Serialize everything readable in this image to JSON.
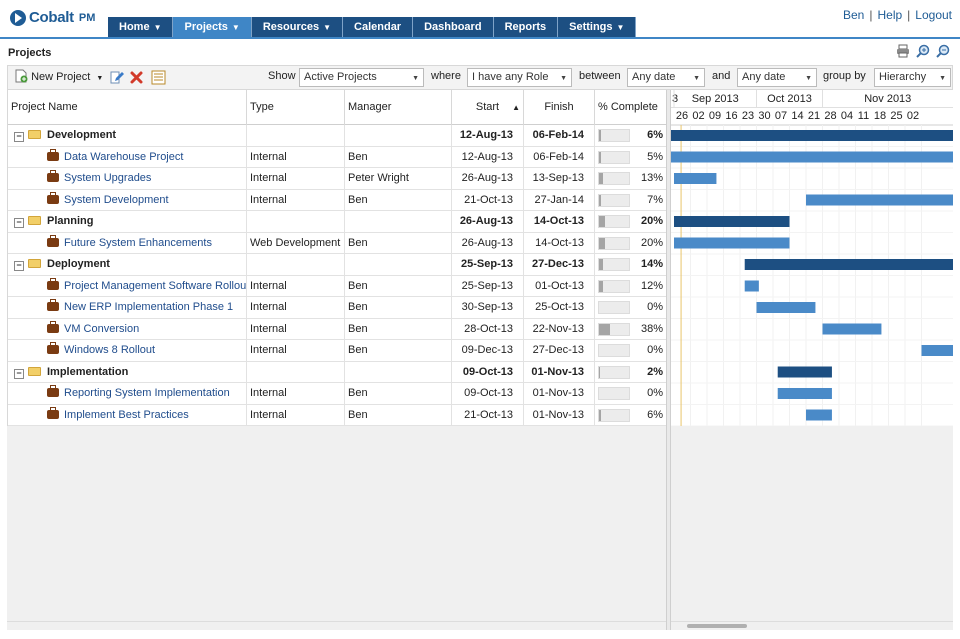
{
  "app": {
    "logo_text": "Cobalt",
    "logo_suffix": "PM"
  },
  "nav": [
    {
      "label": "Home",
      "caret": true
    },
    {
      "label": "Projects",
      "caret": true,
      "active": true
    },
    {
      "label": "Resources",
      "caret": true
    },
    {
      "label": "Calendar",
      "caret": false
    },
    {
      "label": "Dashboard",
      "caret": false
    },
    {
      "label": "Reports",
      "caret": false
    },
    {
      "label": "Settings",
      "caret": true
    }
  ],
  "user_links": {
    "user": "Ben",
    "help": "Help",
    "logout": "Logout"
  },
  "page": {
    "title": "Projects"
  },
  "page_icons": [
    "printer-icon",
    "zoom-in-icon",
    "zoom-out-icon"
  ],
  "toolbar": {
    "new_project": "New Project",
    "show_label": "Show",
    "show_value": "Active Projects",
    "where_label": "where",
    "role_value": "I have any Role",
    "between_label": "between",
    "from_value": "Any date",
    "and_label": "and",
    "to_value": "Any date",
    "groupby_label": "group by",
    "groupby_value": "Hierarchy"
  },
  "columns": {
    "name": "Project Name",
    "type": "Type",
    "manager": "Manager",
    "start": "Start",
    "finish": "Finish",
    "pct": "% Complete"
  },
  "rows": [
    {
      "kind": "group",
      "name": "Development",
      "type": "",
      "manager": "",
      "start": "12-Aug-13",
      "finish": "06-Feb-14",
      "pct": "6%",
      "progress": 0.06
    },
    {
      "kind": "task",
      "name": "Data Warehouse Project",
      "type": "Internal",
      "manager": "Ben",
      "start": "12-Aug-13",
      "finish": "06-Feb-14",
      "pct": "5%",
      "progress": 0.05
    },
    {
      "kind": "task",
      "name": "System Upgrades",
      "type": "Internal",
      "manager": "Peter Wright",
      "start": "26-Aug-13",
      "finish": "13-Sep-13",
      "pct": "13%",
      "progress": 0.13
    },
    {
      "kind": "task",
      "name": "System Development",
      "type": "Internal",
      "manager": "Ben",
      "start": "21-Oct-13",
      "finish": "27-Jan-14",
      "pct": "7%",
      "progress": 0.07
    },
    {
      "kind": "group",
      "name": "Planning",
      "type": "",
      "manager": "",
      "start": "26-Aug-13",
      "finish": "14-Oct-13",
      "pct": "20%",
      "progress": 0.2
    },
    {
      "kind": "task",
      "name": "Future System Enhancements",
      "type": "Web Development",
      "manager": "Ben",
      "start": "26-Aug-13",
      "finish": "14-Oct-13",
      "pct": "20%",
      "progress": 0.2
    },
    {
      "kind": "group",
      "name": "Deployment",
      "type": "",
      "manager": "",
      "start": "25-Sep-13",
      "finish": "27-Dec-13",
      "pct": "14%",
      "progress": 0.14
    },
    {
      "kind": "task",
      "name": "Project Management Software Rollout",
      "type": "Internal",
      "manager": "Ben",
      "start": "25-Sep-13",
      "finish": "01-Oct-13",
      "pct": "12%",
      "progress": 0.12
    },
    {
      "kind": "task",
      "name": "New ERP Implementation Phase 1",
      "type": "Internal",
      "manager": "Ben",
      "start": "30-Sep-13",
      "finish": "25-Oct-13",
      "pct": "0%",
      "progress": 0
    },
    {
      "kind": "task",
      "name": "VM Conversion",
      "type": "Internal",
      "manager": "Ben",
      "start": "28-Oct-13",
      "finish": "22-Nov-13",
      "pct": "38%",
      "progress": 0.38
    },
    {
      "kind": "task",
      "name": "Windows 8 Rollout",
      "type": "Internal",
      "manager": "Ben",
      "start": "09-Dec-13",
      "finish": "27-Dec-13",
      "pct": "0%",
      "progress": 0
    },
    {
      "kind": "group",
      "name": "Implementation",
      "type": "",
      "manager": "",
      "start": "09-Oct-13",
      "finish": "01-Nov-13",
      "pct": "2%",
      "progress": 0.02
    },
    {
      "kind": "task",
      "name": "Reporting System Implementation",
      "type": "Internal",
      "manager": "Ben",
      "start": "09-Oct-13",
      "finish": "01-Nov-13",
      "pct": "0%",
      "progress": 0
    },
    {
      "kind": "task",
      "name": "Implement Best Practices",
      "type": "Internal",
      "manager": "Ben",
      "start": "21-Oct-13",
      "finish": "01-Nov-13",
      "pct": "6%",
      "progress": 0.06
    }
  ],
  "gantt": {
    "months": [
      {
        "label": "3",
        "start": "2013-08-19"
      },
      {
        "label": "Sep 2013",
        "start": "2013-08-26"
      },
      {
        "label": "Oct 2013",
        "start": "2013-09-30"
      },
      {
        "label": "Nov 2013",
        "start": "2013-10-28"
      }
    ],
    "weeks": [
      "26",
      "02",
      "09",
      "16",
      "23",
      "30",
      "07",
      "14",
      "21",
      "28",
      "04",
      "11",
      "18",
      "25",
      "02"
    ],
    "first_week": "2013-08-26",
    "today": "2013-08-29",
    "group_color": "#1d4f82",
    "task_color": "#4a8ac8"
  }
}
